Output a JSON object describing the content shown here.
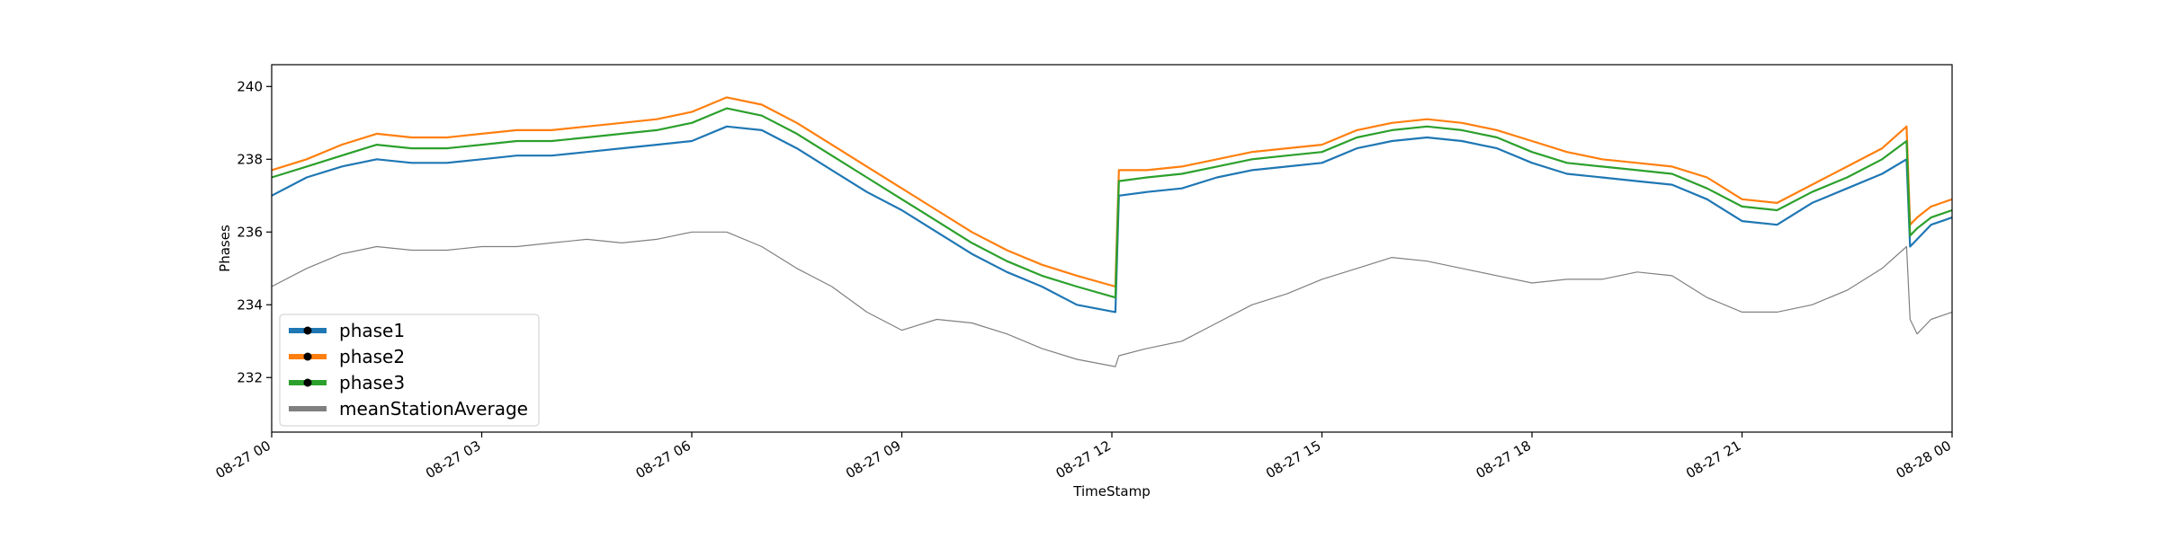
{
  "chart_data": {
    "type": "line",
    "title": "",
    "xlabel": "TimeStamp",
    "ylabel": "Phases",
    "xlim": [
      "2021-08-27 00:00",
      "2021-08-28 00:00"
    ],
    "ylim": [
      230.5,
      240.6
    ],
    "x_ticks": [
      "08-27 00",
      "08-27 03",
      "08-27 06",
      "08-27 09",
      "08-27 12",
      "08-27 15",
      "08-27 18",
      "08-27 21",
      "08-28 00"
    ],
    "y_ticks": [
      232,
      234,
      236,
      238,
      240
    ],
    "grid": false,
    "legend": {
      "position": "lower-left"
    },
    "x_hours": [
      0,
      0.5,
      1,
      1.5,
      2,
      2.5,
      3,
      3.5,
      4,
      4.5,
      5,
      5.5,
      6,
      6.5,
      7,
      7.5,
      8,
      8.5,
      9,
      9.5,
      10,
      10.5,
      11,
      11.5,
      12.05,
      12.1,
      12.5,
      13,
      13.5,
      14,
      14.5,
      15,
      15.5,
      16,
      16.5,
      17,
      17.5,
      18,
      18.5,
      19,
      19.5,
      20,
      20.5,
      21,
      21.5,
      22,
      22.5,
      23,
      23.35,
      23.4,
      23.5,
      23.7,
      24
    ],
    "series": [
      {
        "name": "phase1",
        "color": "#1f77b4",
        "values": [
          237.0,
          237.5,
          237.8,
          238.0,
          237.9,
          237.9,
          238.0,
          238.1,
          238.1,
          238.2,
          238.3,
          238.4,
          238.5,
          238.9,
          238.8,
          238.3,
          237.7,
          237.1,
          236.6,
          236.0,
          235.4,
          234.9,
          234.5,
          234.0,
          233.8,
          237.0,
          237.1,
          237.2,
          237.5,
          237.7,
          237.8,
          237.9,
          238.3,
          238.5,
          238.6,
          238.5,
          238.3,
          237.9,
          237.6,
          237.5,
          237.4,
          237.3,
          236.9,
          236.3,
          236.2,
          236.8,
          237.2,
          237.6,
          238.0,
          235.6,
          235.8,
          236.2,
          236.4
        ]
      },
      {
        "name": "phase2",
        "color": "#ff7f0e",
        "values": [
          237.7,
          238.0,
          238.4,
          238.7,
          238.6,
          238.6,
          238.7,
          238.8,
          238.8,
          238.9,
          239.0,
          239.1,
          239.3,
          239.7,
          239.5,
          239.0,
          238.4,
          237.8,
          237.2,
          236.6,
          236.0,
          235.5,
          235.1,
          234.8,
          234.5,
          237.7,
          237.7,
          237.8,
          238.0,
          238.2,
          238.3,
          238.4,
          238.8,
          239.0,
          239.1,
          239.0,
          238.8,
          238.5,
          238.2,
          238.0,
          237.9,
          237.8,
          237.5,
          236.9,
          236.8,
          237.3,
          237.8,
          238.3,
          238.9,
          236.2,
          236.4,
          236.7,
          236.9
        ]
      },
      {
        "name": "phase3",
        "color": "#2ca02c",
        "values": [
          237.5,
          237.8,
          238.1,
          238.4,
          238.3,
          238.3,
          238.4,
          238.5,
          238.5,
          238.6,
          238.7,
          238.8,
          239.0,
          239.4,
          239.2,
          238.7,
          238.1,
          237.5,
          236.9,
          236.3,
          235.7,
          235.2,
          234.8,
          234.5,
          234.2,
          237.4,
          237.5,
          237.6,
          237.8,
          238.0,
          238.1,
          238.2,
          238.6,
          238.8,
          238.9,
          238.8,
          238.6,
          238.2,
          237.9,
          237.8,
          237.7,
          237.6,
          237.2,
          236.7,
          236.6,
          237.1,
          237.5,
          238.0,
          238.5,
          235.9,
          236.1,
          236.4,
          236.6
        ]
      },
      {
        "name": "meanStationAverage",
        "color": "#808080",
        "values": [
          234.5,
          235.0,
          235.4,
          235.6,
          235.5,
          235.5,
          235.6,
          235.6,
          235.7,
          235.8,
          235.7,
          235.8,
          236.0,
          236.0,
          235.6,
          235.0,
          234.5,
          233.8,
          233.3,
          233.6,
          233.5,
          233.2,
          232.8,
          232.5,
          232.3,
          232.6,
          232.8,
          233.0,
          233.5,
          234.0,
          234.3,
          234.7,
          235.0,
          235.3,
          235.2,
          235.0,
          234.8,
          234.6,
          234.7,
          234.7,
          234.9,
          234.8,
          234.2,
          233.8,
          233.8,
          234.0,
          234.4,
          235.0,
          235.6,
          233.6,
          233.2,
          233.6,
          233.8
        ]
      }
    ]
  }
}
